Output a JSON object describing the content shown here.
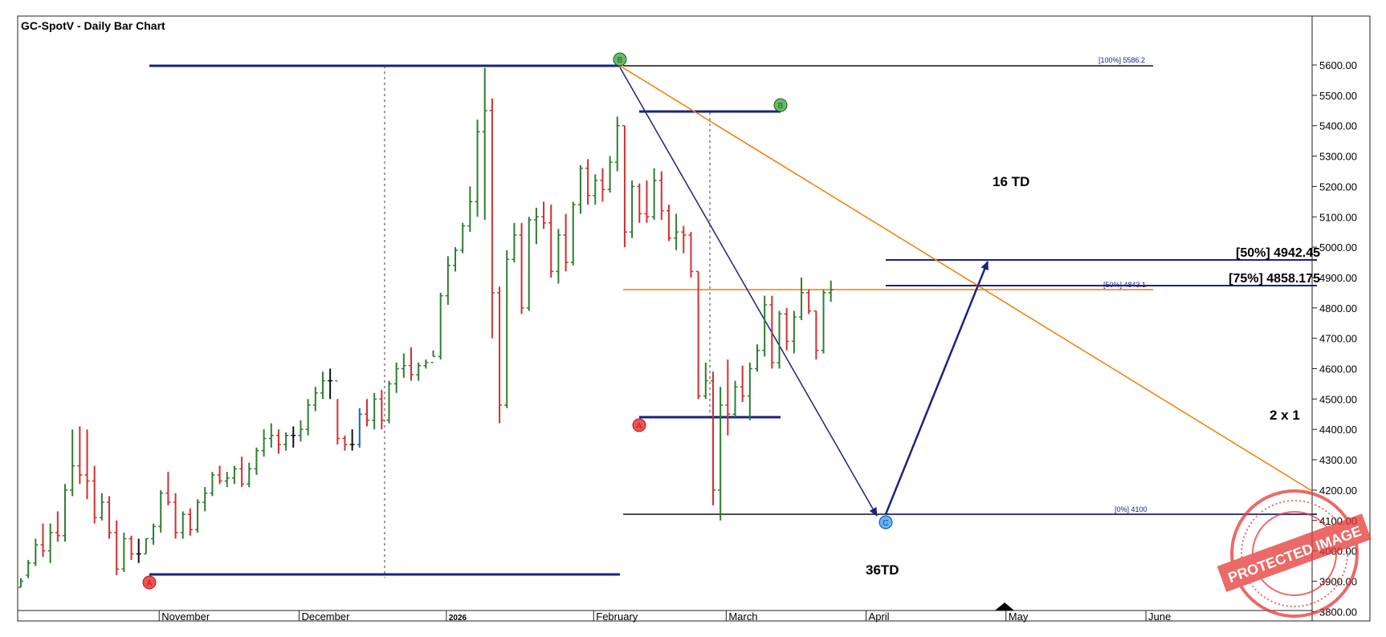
{
  "chart_data": {
    "type": "ohlc-bar",
    "title": "GC-SpotV - Daily Bar Chart",
    "y_axis": {
      "min": 3750,
      "max": 5700,
      "ticks": [
        "3800.00",
        "3900.00",
        "4000.00",
        "4100.00",
        "4200.00",
        "4300.00",
        "4400.00",
        "4500.00",
        "4600.00",
        "4700.00",
        "4800.00",
        "4900.00",
        "5000.00",
        "5100.00",
        "5200.00",
        "5300.00",
        "5400.00",
        "5500.00",
        "5600.00"
      ],
      "position": "right"
    },
    "x_axis": {
      "labels": [
        "November",
        "December",
        "2026",
        "February",
        "March",
        "April",
        "May",
        "June"
      ],
      "label_bars": [
        19,
        38,
        58,
        78,
        96,
        115,
        134,
        153
      ]
    },
    "grid": false,
    "bars_approx": [
      [
        3880,
        3910,
        3880,
        3900
      ],
      [
        3920,
        3970,
        3910,
        3960
      ],
      [
        3960,
        4040,
        3950,
        4020
      ],
      [
        4020,
        4090,
        3980,
        4000
      ],
      [
        4000,
        4090,
        3960,
        4060
      ],
      [
        4060,
        4130,
        4030,
        4050
      ],
      [
        4050,
        4220,
        4030,
        4200
      ],
      [
        4200,
        4400,
        4180,
        4280
      ],
      [
        4280,
        4410,
        4220,
        4250
      ],
      [
        4250,
        4400,
        4170,
        4230
      ],
      [
        4230,
        4280,
        4090,
        4110
      ],
      [
        4110,
        4190,
        4100,
        4160
      ],
      [
        4160,
        4180,
        4040,
        4060
      ],
      [
        4060,
        4100,
        3920,
        3940
      ],
      [
        3940,
        4060,
        3930,
        4040
      ],
      [
        4040,
        4050,
        3970,
        3990
      ],
      [
        3990,
        4040,
        3960,
        3990
      ],
      [
        3990,
        4040,
        3990,
        4040
      ],
      [
        4040,
        4090,
        4020,
        4080
      ],
      [
        4080,
        4200,
        4060,
        4190
      ],
      [
        4190,
        4260,
        4150,
        4160
      ],
      [
        4160,
        4190,
        4040,
        4060
      ],
      [
        4060,
        4130,
        4040,
        4120
      ],
      [
        4120,
        4140,
        4050,
        4070
      ],
      [
        4070,
        4170,
        4060,
        4160
      ],
      [
        4160,
        4210,
        4130,
        4190
      ],
      [
        4190,
        4260,
        4180,
        4250
      ],
      [
        4250,
        4280,
        4220,
        4230
      ],
      [
        4230,
        4260,
        4210,
        4240
      ],
      [
        4240,
        4280,
        4220,
        4270
      ],
      [
        4270,
        4310,
        4210,
        4220
      ],
      [
        4220,
        4290,
        4210,
        4270
      ],
      [
        4270,
        4340,
        4250,
        4330
      ],
      [
        4330,
        4400,
        4310,
        4370
      ],
      [
        4370,
        4420,
        4340,
        4380
      ],
      [
        4380,
        4400,
        4320,
        4350
      ],
      [
        4350,
        4390,
        4330,
        4380
      ],
      [
        4380,
        4410,
        4340,
        4380
      ],
      [
        4380,
        4430,
        4360,
        4400
      ],
      [
        4400,
        4500,
        4380,
        4480
      ],
      [
        4480,
        4540,
        4460,
        4520
      ],
      [
        4520,
        4590,
        4500,
        4560
      ],
      [
        4560,
        4600,
        4500,
        4560
      ],
      [
        4560,
        4500,
        4350,
        4370
      ],
      [
        4370,
        4380,
        4330,
        4350
      ],
      [
        4350,
        4400,
        4330,
        4350
      ],
      [
        4350,
        4470,
        4340,
        4450
      ],
      [
        4450,
        4500,
        4410,
        4430
      ],
      [
        4430,
        4520,
        4400,
        4500
      ],
      [
        4500,
        4530,
        4400,
        4430
      ],
      [
        4430,
        4560,
        4420,
        4550
      ],
      [
        4550,
        4620,
        4520,
        4600
      ],
      [
        4600,
        4650,
        4570,
        4610
      ],
      [
        4610,
        4670,
        4560,
        4580
      ],
      [
        4580,
        4620,
        4560,
        4610
      ],
      [
        4610,
        4630,
        4600,
        4620
      ],
      [
        4620,
        4660,
        4640,
        4640
      ],
      [
        4640,
        4850,
        4630,
        4840
      ],
      [
        4840,
        4970,
        4810,
        4940
      ],
      [
        4940,
        5000,
        4920,
        4990
      ],
      [
        4990,
        5080,
        4980,
        5070
      ],
      [
        5070,
        5200,
        5050,
        5150
      ],
      [
        5150,
        5420,
        5100,
        5380
      ],
      [
        5380,
        5590,
        5090,
        5450
      ],
      [
        5450,
        5490,
        4700,
        4850
      ],
      [
        4850,
        4870,
        4420,
        4480
      ],
      [
        4480,
        4990,
        4470,
        4960
      ],
      [
        4960,
        5080,
        4950,
        5040
      ],
      [
        5040,
        5080,
        4780,
        4800
      ],
      [
        4800,
        5100,
        4790,
        5090
      ],
      [
        5090,
        5130,
        5010,
        5100
      ],
      [
        5100,
        5150,
        5060,
        5080
      ],
      [
        5080,
        5140,
        4900,
        4920
      ],
      [
        4920,
        5060,
        4880,
        5040
      ],
      [
        5040,
        5110,
        4920,
        4950
      ],
      [
        4950,
        5150,
        4940,
        5140
      ],
      [
        5140,
        5270,
        5110,
        5260
      ],
      [
        5260,
        5290,
        5140,
        5170
      ],
      [
        5170,
        5240,
        5140,
        5220
      ],
      [
        5220,
        5260,
        5150,
        5190
      ],
      [
        5190,
        5300,
        5180,
        5280
      ],
      [
        5280,
        5430,
        5250,
        5400
      ],
      [
        5400,
        5400,
        5000,
        5050
      ],
      [
        5050,
        5220,
        5030,
        5200
      ],
      [
        5200,
        5210,
        5080,
        5110
      ],
      [
        5110,
        5220,
        5080,
        5100
      ],
      [
        5100,
        5260,
        5090,
        5220
      ],
      [
        5220,
        5250,
        5090,
        5120
      ],
      [
        5120,
        5140,
        5020,
        5030
      ],
      [
        5030,
        5110,
        4990,
        5050
      ],
      [
        5050,
        5070,
        4980,
        5040
      ],
      [
        5040,
        5050,
        4900,
        4920
      ],
      [
        4920,
        4920,
        4500,
        4510
      ],
      [
        4510,
        4620,
        4500,
        4560
      ],
      [
        4560,
        4590,
        4150,
        4200
      ],
      [
        4200,
        4540,
        4100,
        4480
      ],
      [
        4480,
        4630,
        4380,
        4450
      ],
      [
        4450,
        4560,
        4440,
        4540
      ],
      [
        4540,
        4610,
        4490,
        4510
      ],
      [
        4510,
        4620,
        4430,
        4600
      ],
      [
        4600,
        4680,
        4590,
        4660
      ],
      [
        4660,
        4840,
        4640,
        4810
      ],
      [
        4810,
        4840,
        4600,
        4620
      ],
      [
        4620,
        4790,
        4600,
        4780
      ],
      [
        4780,
        4800,
        4660,
        4690
      ],
      [
        4690,
        4790,
        4650,
        4770
      ],
      [
        4770,
        4900,
        4760,
        4850
      ],
      [
        4850,
        4860,
        4780,
        4790
      ],
      [
        4790,
        4790,
        4630,
        4660
      ],
      [
        4660,
        4860,
        4650,
        4850
      ],
      [
        4850,
        4890,
        4820,
        4860
      ]
    ],
    "annotations": [
      {
        "text": "16 TD"
      },
      {
        "text": "36TD"
      },
      {
        "text": "2 x 1"
      },
      {
        "text": "[50%] 4942.45"
      },
      {
        "text": "[75%] 4858.175"
      },
      {
        "text": "[100%] 5586.2"
      },
      {
        "text": "[50%] 4843.1"
      },
      {
        "text": "[0%] 4100"
      }
    ],
    "pivot_markers": [
      "A",
      "B",
      "B",
      "A",
      "C"
    ],
    "watermark": "PROTECTED IMAGE"
  }
}
